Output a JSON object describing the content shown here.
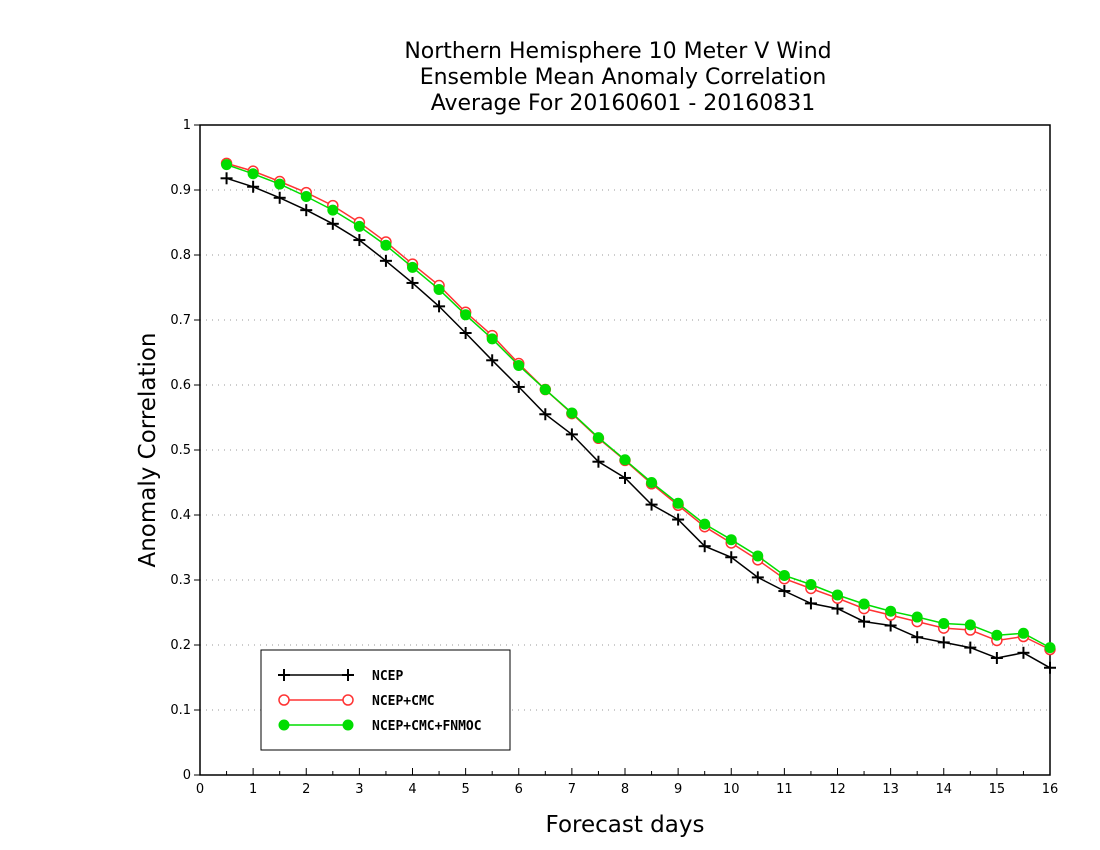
{
  "chart_data": {
    "type": "line",
    "title_lines": [
      "Northern Hemisphere 10 Meter V Wind",
      "Ensemble Mean Anomaly Correlation",
      "Average For 20160601 - 20160831"
    ],
    "xlabel": "Forecast days",
    "ylabel": "Anomaly Correlation",
    "xlim": [
      0,
      16
    ],
    "ylim": [
      0,
      1
    ],
    "x_ticks": [
      "0",
      "1",
      "2",
      "3",
      "4",
      "5",
      "6",
      "7",
      "8",
      "9",
      "10",
      "11",
      "12",
      "13",
      "14",
      "15",
      "16"
    ],
    "y_ticks": [
      "0",
      "0.1",
      "0.2",
      "0.3",
      "0.4",
      "0.5",
      "0.6",
      "0.7",
      "0.8",
      "0.9",
      "1"
    ],
    "grid": "dotted horizontal",
    "legend_position": "bottom-left",
    "x": [
      0.5,
      1,
      1.5,
      2,
      2.5,
      3,
      3.5,
      4,
      4.5,
      5,
      5.5,
      6,
      6.5,
      7,
      7.5,
      8,
      8.5,
      9,
      9.5,
      10,
      10.5,
      11,
      11.5,
      12,
      12.5,
      13,
      13.5,
      14,
      14.5,
      15,
      15.5,
      16
    ],
    "series": [
      {
        "name": "NCEP",
        "color": "#000000",
        "marker": "plus",
        "values": [
          0.918,
          0.905,
          0.888,
          0.869,
          0.848,
          0.823,
          0.791,
          0.757,
          0.721,
          0.68,
          0.638,
          0.597,
          0.555,
          0.524,
          0.482,
          0.457,
          0.416,
          0.393,
          0.352,
          0.335,
          0.304,
          0.283,
          0.264,
          0.256,
          0.236,
          0.23,
          0.212,
          0.204,
          0.196,
          0.18,
          0.188,
          0.165
        ]
      },
      {
        "name": "NCEP+CMC",
        "color": "#ff3333",
        "marker": "open-circle",
        "values": [
          0.941,
          0.929,
          0.913,
          0.896,
          0.876,
          0.85,
          0.82,
          0.786,
          0.753,
          0.712,
          0.676,
          0.633,
          0.593,
          0.556,
          0.518,
          0.484,
          0.448,
          0.415,
          0.382,
          0.357,
          0.331,
          0.302,
          0.287,
          0.272,
          0.256,
          0.246,
          0.236,
          0.226,
          0.223,
          0.207,
          0.213,
          0.193
        ]
      },
      {
        "name": "NCEP+CMC+FNMOC",
        "color": "#00dd00",
        "marker": "filled-circle",
        "values": [
          0.939,
          0.925,
          0.909,
          0.89,
          0.869,
          0.844,
          0.815,
          0.781,
          0.747,
          0.708,
          0.671,
          0.63,
          0.593,
          0.557,
          0.519,
          0.485,
          0.45,
          0.418,
          0.386,
          0.362,
          0.337,
          0.307,
          0.293,
          0.277,
          0.263,
          0.252,
          0.243,
          0.233,
          0.231,
          0.215,
          0.218,
          0.196
        ]
      }
    ]
  }
}
